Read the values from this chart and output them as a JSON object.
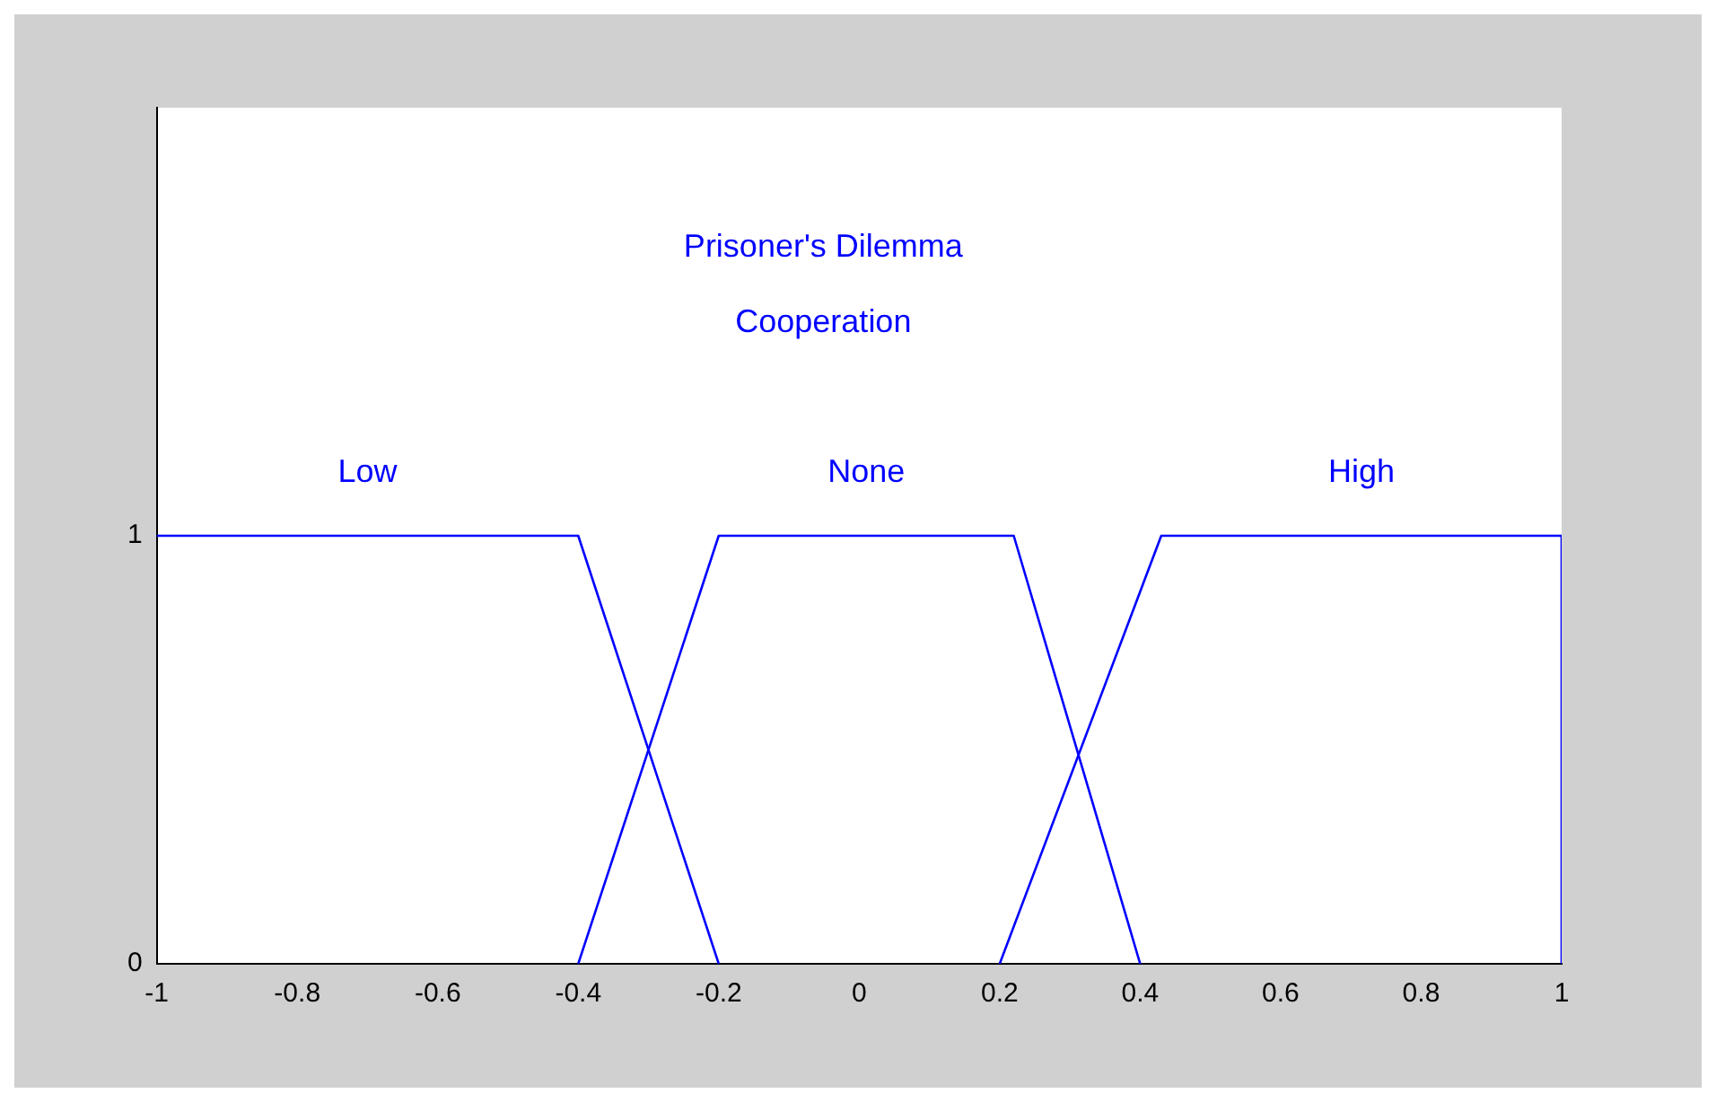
{
  "chart_data": {
    "type": "line",
    "title": "Prisoner's Dilemma",
    "subtitle": "Cooperation",
    "series": [
      {
        "name": "Low",
        "color": "#0000ff",
        "x": [
          -1,
          -0.4,
          -0.2
        ],
        "values": [
          1,
          1,
          0
        ]
      },
      {
        "name": "None",
        "color": "#0000ff",
        "x": [
          -0.4,
          -0.2,
          0.22,
          0.4
        ],
        "values": [
          0,
          1,
          1,
          0
        ]
      },
      {
        "name": "High",
        "color": "#0000ff",
        "x": [
          0.2,
          0.43,
          1,
          1
        ],
        "values": [
          0,
          1,
          1,
          0
        ]
      }
    ],
    "xlim": [
      -1,
      1
    ],
    "xticks": [
      -1,
      -0.8,
      -0.6,
      -0.4,
      -0.2,
      0,
      0.2,
      0.4,
      0.6,
      0.8,
      1
    ],
    "ylim": [
      0,
      2
    ],
    "yticks": [
      0,
      1
    ],
    "grid": false,
    "legend": false,
    "marker": "none",
    "line_style": "solid"
  }
}
